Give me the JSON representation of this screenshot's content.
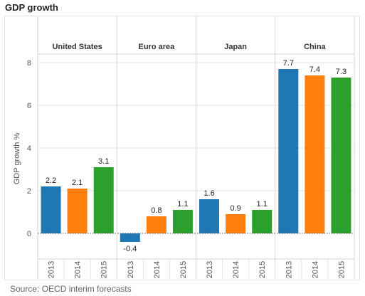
{
  "header": {
    "title": "GDP growth"
  },
  "footer": {
    "source": "Source: OECD interim forecasts"
  },
  "chart_data": {
    "type": "bar",
    "ylabel": "GDP growth %",
    "ylim": [
      -1,
      8.5
    ],
    "yticks": [
      0,
      2,
      4,
      6,
      8
    ],
    "grid": true,
    "series_colors": {
      "2013": "#1f77b4",
      "2014": "#ff7f0e",
      "2015": "#2ca02c"
    },
    "panels": [
      {
        "name": "United States",
        "years": [
          "2013",
          "2014",
          "2015"
        ],
        "values": [
          2.2,
          2.1,
          3.1
        ]
      },
      {
        "name": "Euro area",
        "years": [
          "2013",
          "2014",
          "2015"
        ],
        "values": [
          -0.4,
          0.8,
          1.1
        ]
      },
      {
        "name": "Japan",
        "years": [
          "2013",
          "2014",
          "2015"
        ],
        "values": [
          1.6,
          0.9,
          1.1
        ]
      },
      {
        "name": "China",
        "years": [
          "2013",
          "2014",
          "2015"
        ],
        "values": [
          7.7,
          7.4,
          7.3
        ]
      }
    ]
  }
}
